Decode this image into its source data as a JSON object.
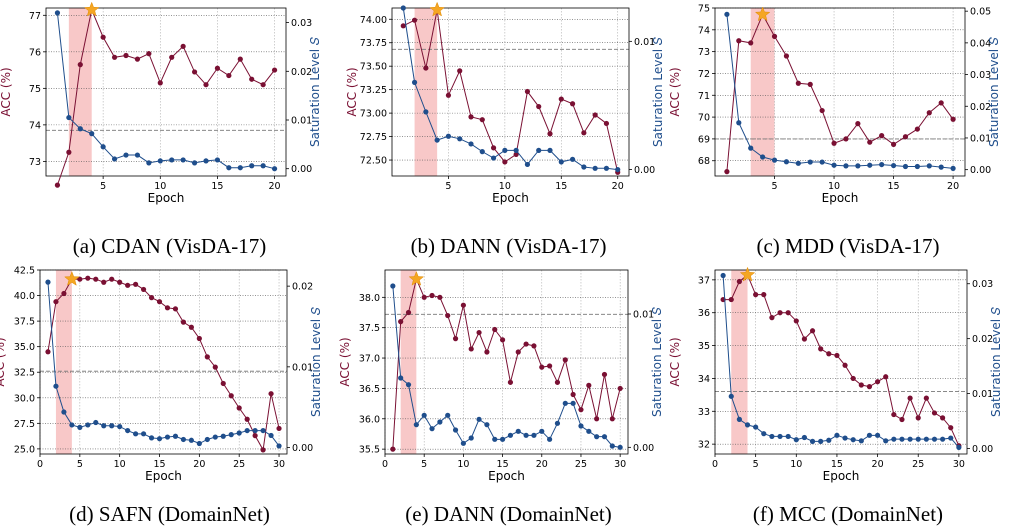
{
  "colors": {
    "acc": "#7a1033",
    "sat": "#1f4e8c",
    "band": "#f4a3a3",
    "star": "#f5a623",
    "grid": "#b0b0b0"
  },
  "chart_data": [
    {
      "type": "line",
      "caption": "(a) CDAN (VisDA-17)",
      "xlabel": "Epoch",
      "ylabel_left": "ACC (%)",
      "ylabel_right": "Saturation Level 𝑆",
      "xlim": [
        0,
        21
      ],
      "xticks": [
        5,
        10,
        15,
        20
      ],
      "xtick_labels": [
        "5",
        "10",
        "15",
        "20"
      ],
      "ylim_left": [
        72.6,
        77.2
      ],
      "yticks_left": [
        73,
        74,
        75,
        76,
        77
      ],
      "ytick_labels_left": [
        "73",
        "74",
        "75",
        "76",
        "77"
      ],
      "ylim_right": [
        -0.0015,
        0.033
      ],
      "yticks_right": [
        0.0,
        0.01,
        0.02,
        0.03
      ],
      "ytick_labels_right": [
        "0.00",
        "0.01",
        "0.02",
        "0.03"
      ],
      "band": [
        2,
        4
      ],
      "star_x": 4,
      "hline_left": 73.85,
      "series": [
        {
          "axis": "left",
          "x": [
            1,
            2,
            3,
            4,
            5,
            6,
            7,
            8,
            9,
            10,
            11,
            12,
            13,
            14,
            15,
            16,
            17,
            18,
            19,
            20
          ],
          "values": [
            72.35,
            73.25,
            75.65,
            77.15,
            76.4,
            75.85,
            75.9,
            75.8,
            75.95,
            75.15,
            75.85,
            76.15,
            75.45,
            75.1,
            75.55,
            75.35,
            75.8,
            75.25,
            75.1,
            75.5
          ]
        },
        {
          "axis": "right",
          "x": [
            1,
            2,
            3,
            4,
            5,
            6,
            7,
            8,
            9,
            10,
            11,
            12,
            13,
            14,
            15,
            16,
            17,
            18,
            19,
            20
          ],
          "values": [
            0.032,
            0.0105,
            0.0082,
            0.0072,
            0.0045,
            0.002,
            0.0028,
            0.0028,
            0.0012,
            0.0016,
            0.0018,
            0.0018,
            0.0012,
            0.0016,
            0.0018,
            0.0002,
            0.0002,
            0.0006,
            0.0006,
            0.0
          ]
        }
      ]
    },
    {
      "type": "line",
      "caption": "(b) DANN (VisDA-17)",
      "xlabel": "Epoch",
      "ylabel_left": "ACC (%)",
      "ylabel_right": "Saturation Level 𝑆",
      "xlim": [
        0,
        21
      ],
      "xticks": [
        5,
        10,
        15,
        20
      ],
      "xtick_labels": [
        "5",
        "10",
        "15",
        "20"
      ],
      "ylim_left": [
        72.33,
        74.12
      ],
      "yticks_left": [
        72.5,
        72.75,
        73.0,
        73.25,
        73.5,
        73.75,
        74.0
      ],
      "ytick_labels_left": [
        "72.50",
        "72.75",
        "73.00",
        "73.25",
        "73.50",
        "73.75",
        "74.00"
      ],
      "ylim_right": [
        -0.0005,
        0.0126
      ],
      "yticks_right": [
        0.0,
        0.01
      ],
      "ytick_labels_right": [
        "0.00",
        "0.01"
      ],
      "band": [
        2,
        4
      ],
      "star_x": 4,
      "hline_left": 73.68,
      "series": [
        {
          "axis": "left",
          "x": [
            1,
            2,
            3,
            4,
            5,
            6,
            7,
            8,
            9,
            10,
            11,
            12,
            13,
            14,
            15,
            16,
            17,
            18,
            19,
            20
          ],
          "values": [
            73.93,
            73.99,
            73.48,
            74.1,
            73.19,
            73.45,
            72.96,
            72.93,
            72.63,
            72.48,
            72.56,
            73.23,
            73.07,
            72.78,
            73.15,
            73.1,
            72.79,
            72.98,
            72.89,
            72.37
          ]
        },
        {
          "axis": "right",
          "x": [
            1,
            2,
            3,
            4,
            5,
            6,
            7,
            8,
            9,
            10,
            11,
            12,
            13,
            14,
            15,
            16,
            17,
            18,
            19,
            20
          ],
          "values": [
            0.0126,
            0.0068,
            0.0045,
            0.0023,
            0.0026,
            0.0024,
            0.002,
            0.0014,
            0.0009,
            0.0015,
            0.0015,
            0.0004,
            0.0015,
            0.0015,
            0.0006,
            0.0008,
            0.0002,
            0.0001,
            0.0001,
            0.0
          ]
        }
      ]
    },
    {
      "type": "line",
      "caption": "(c) MDD (VisDA-17)",
      "xlabel": "Epoch",
      "ylabel_left": "ACC (%)",
      "ylabel_right": "Saturation Level 𝑆",
      "xlim": [
        0,
        21
      ],
      "xticks": [
        5,
        10,
        15,
        20
      ],
      "xtick_labels": [
        "5",
        "10",
        "15",
        "20"
      ],
      "ylim_left": [
        67.3,
        75.0
      ],
      "yticks_left": [
        68,
        69,
        70,
        71,
        72,
        73,
        74,
        75
      ],
      "ytick_labels_left": [
        "68",
        "69",
        "70",
        "71",
        "72",
        "73",
        "74",
        "75"
      ],
      "ylim_right": [
        -0.002,
        0.051
      ],
      "yticks_right": [
        0.0,
        0.01,
        0.02,
        0.03,
        0.04,
        0.05
      ],
      "ytick_labels_right": [
        "0.00",
        "0.01",
        "0.02",
        "0.03",
        "0.04",
        "0.05"
      ],
      "band": [
        3,
        5
      ],
      "star_x": 4,
      "hline_left": 69.0,
      "series": [
        {
          "axis": "left",
          "x": [
            1,
            2,
            3,
            4,
            5,
            6,
            7,
            8,
            9,
            10,
            11,
            12,
            13,
            14,
            15,
            16,
            17,
            18,
            19,
            20
          ],
          "values": [
            67.5,
            73.5,
            73.4,
            74.7,
            73.7,
            72.8,
            71.55,
            71.5,
            70.3,
            68.8,
            69.0,
            69.7,
            68.85,
            69.15,
            68.75,
            69.1,
            69.45,
            70.2,
            70.65,
            69.9
          ]
        },
        {
          "axis": "right",
          "x": [
            1,
            2,
            3,
            4,
            5,
            6,
            7,
            8,
            9,
            10,
            11,
            12,
            13,
            14,
            15,
            16,
            17,
            18,
            19,
            20
          ],
          "values": [
            0.049,
            0.0148,
            0.0068,
            0.004,
            0.003,
            0.0025,
            0.002,
            0.0024,
            0.0024,
            0.0014,
            0.0012,
            0.0012,
            0.0014,
            0.0016,
            0.0013,
            0.001,
            0.001,
            0.0012,
            0.0008,
            0.0004
          ]
        }
      ]
    },
    {
      "type": "line",
      "caption": "(d) SAFN (DomainNet)",
      "xlabel": "Epoch",
      "ylabel_left": "ACC (%)",
      "ylabel_right": "Saturation Level 𝑆",
      "xlim": [
        0,
        31
      ],
      "xticks": [
        0,
        5,
        10,
        15,
        20,
        25,
        30
      ],
      "xtick_labels": [
        "0",
        "5",
        "10",
        "15",
        "20",
        "25",
        "30"
      ],
      "ylim_left": [
        24.5,
        42.5
      ],
      "yticks_left": [
        25.0,
        27.5,
        30.0,
        32.5,
        35.0,
        37.5,
        40.0,
        42.5
      ],
      "ytick_labels_left": [
        "25.0",
        "27.5",
        "30.0",
        "32.5",
        "35.0",
        "37.5",
        "40.0",
        "42.5"
      ],
      "ylim_right": [
        -0.0008,
        0.022
      ],
      "yticks_right": [
        0.0,
        0.01,
        0.02
      ],
      "ytick_labels_right": [
        "0.00",
        "0.01",
        "0.02"
      ],
      "band": [
        2,
        4
      ],
      "star_x": 4,
      "hline_left": 32.6,
      "series": [
        {
          "axis": "left",
          "x": [
            1,
            2,
            3,
            4,
            5,
            6,
            7,
            8,
            9,
            10,
            11,
            12,
            13,
            14,
            15,
            16,
            17,
            18,
            19,
            20,
            21,
            22,
            23,
            24,
            25,
            26,
            27,
            28,
            29,
            30
          ],
          "values": [
            34.5,
            39.4,
            40.2,
            41.6,
            41.6,
            41.7,
            41.6,
            41.3,
            41.6,
            41.3,
            41.0,
            41.1,
            40.6,
            39.8,
            39.4,
            38.8,
            38.7,
            37.4,
            36.9,
            35.8,
            34.0,
            33.0,
            31.4,
            30.2,
            29.0,
            27.9,
            26.3,
            24.9,
            30.4,
            27.0
          ]
        },
        {
          "axis": "right",
          "x": [
            1,
            2,
            3,
            4,
            5,
            6,
            7,
            8,
            9,
            10,
            11,
            12,
            13,
            14,
            15,
            16,
            17,
            18,
            19,
            20,
            21,
            22,
            23,
            24,
            25,
            26,
            27,
            28,
            29,
            30
          ],
          "values": [
            0.0205,
            0.0076,
            0.0044,
            0.0028,
            0.0025,
            0.0028,
            0.0031,
            0.0027,
            0.0027,
            0.0026,
            0.0021,
            0.0017,
            0.0017,
            0.0012,
            0.0011,
            0.0013,
            0.0014,
            0.001,
            0.0009,
            0.0005,
            0.001,
            0.0013,
            0.0014,
            0.0016,
            0.0018,
            0.0021,
            0.0021,
            0.0021,
            0.0015,
            0.0002
          ]
        }
      ]
    },
    {
      "type": "line",
      "caption": "(e) DANN (DomainNet)",
      "xlabel": "Epoch",
      "ylabel_left": "ACC (%)",
      "ylabel_right": "Saturation Level 𝑆",
      "xlim": [
        0,
        31
      ],
      "xticks": [
        0,
        5,
        10,
        15,
        20,
        25,
        30
      ],
      "xtick_labels": [
        "0",
        "5",
        "10",
        "15",
        "20",
        "25",
        "30"
      ],
      "ylim_left": [
        35.42,
        38.45
      ],
      "yticks_left": [
        35.5,
        36.0,
        36.5,
        37.0,
        37.5,
        38.0
      ],
      "ytick_labels_left": [
        "35.5",
        "36.0",
        "36.5",
        "37.0",
        "37.5",
        "38.0"
      ],
      "ylim_right": [
        -0.0005,
        0.0133
      ],
      "yticks_right": [
        0.0,
        0.01
      ],
      "ytick_labels_right": [
        "0.00",
        "0.01"
      ],
      "band": [
        2,
        4
      ],
      "star_x": 4,
      "hline_left": 37.72,
      "series": [
        {
          "axis": "left",
          "x": [
            1,
            2,
            3,
            4,
            5,
            6,
            7,
            8,
            9,
            10,
            11,
            12,
            13,
            14,
            15,
            16,
            17,
            18,
            19,
            20,
            21,
            22,
            23,
            24,
            25,
            26,
            27,
            28,
            29,
            30
          ],
          "values": [
            35.5,
            37.6,
            37.75,
            38.3,
            38.0,
            38.03,
            38.0,
            37.7,
            37.32,
            37.87,
            37.15,
            37.42,
            37.1,
            37.47,
            37.3,
            36.6,
            37.1,
            37.23,
            37.2,
            36.85,
            36.87,
            36.6,
            36.97,
            36.4,
            36.15,
            36.55,
            36.0,
            36.73,
            36.0,
            36.5
          ]
        },
        {
          "axis": "right",
          "x": [
            1,
            2,
            3,
            4,
            5,
            6,
            7,
            8,
            9,
            10,
            11,
            12,
            13,
            14,
            15,
            16,
            17,
            18,
            19,
            20,
            21,
            22,
            23,
            24,
            25,
            26,
            27,
            28,
            29,
            30
          ],
          "values": [
            0.0121,
            0.0052,
            0.0047,
            0.0017,
            0.0024,
            0.0014,
            0.0019,
            0.0024,
            0.0013,
            0.0003,
            0.0007,
            0.0021,
            0.0017,
            0.0006,
            0.0006,
            0.0009,
            0.0012,
            0.0009,
            0.0009,
            0.0012,
            0.0006,
            0.0018,
            0.0033,
            0.0033,
            0.0016,
            0.0012,
            0.0008,
            0.0008,
            0.0001,
            0.0
          ]
        }
      ]
    },
    {
      "type": "line",
      "caption": "(f) MCC (DomainNet)",
      "xlabel": "Epoch",
      "ylabel_left": "ACC (%)",
      "ylabel_right": "Saturation Level 𝑆",
      "xlim": [
        0,
        31
      ],
      "xticks": [
        0,
        5,
        10,
        15,
        20,
        25,
        30
      ],
      "xtick_labels": [
        "0",
        "5",
        "10",
        "15",
        "20",
        "25",
        "30"
      ],
      "ylim_left": [
        31.7,
        37.3
      ],
      "yticks_left": [
        32,
        33,
        34,
        35,
        36,
        37
      ],
      "ytick_labels_left": [
        "32",
        "33",
        "34",
        "35",
        "36",
        "37"
      ],
      "ylim_right": [
        -0.001,
        0.0325
      ],
      "yticks_right": [
        0.0,
        0.01,
        0.02,
        0.03
      ],
      "ytick_labels_right": [
        "0.00",
        "0.01",
        "0.02",
        "0.03"
      ],
      "band": [
        2,
        4
      ],
      "star_x": 4,
      "hline_left": 33.6,
      "series": [
        {
          "axis": "left",
          "x": [
            1,
            2,
            3,
            4,
            5,
            6,
            7,
            8,
            9,
            10,
            11,
            12,
            13,
            14,
            15,
            16,
            17,
            18,
            19,
            20,
            21,
            22,
            23,
            24,
            25,
            26,
            27,
            28,
            29,
            30
          ],
          "values": [
            36.4,
            36.4,
            36.95,
            37.15,
            36.55,
            36.55,
            35.85,
            36.0,
            36.0,
            35.75,
            35.2,
            35.45,
            34.9,
            34.75,
            34.7,
            34.4,
            34.0,
            33.8,
            33.75,
            33.9,
            34.05,
            32.9,
            32.75,
            33.4,
            32.8,
            33.4,
            32.95,
            32.8,
            32.5,
            31.95
          ]
        },
        {
          "axis": "right",
          "x": [
            1,
            2,
            3,
            4,
            5,
            6,
            7,
            8,
            9,
            10,
            11,
            12,
            13,
            14,
            15,
            16,
            17,
            18,
            19,
            20,
            21,
            22,
            23,
            24,
            25,
            26,
            27,
            28,
            29,
            30
          ],
          "values": [
            0.0315,
            0.0095,
            0.0053,
            0.0043,
            0.0039,
            0.0027,
            0.0022,
            0.0022,
            0.0022,
            0.0016,
            0.002,
            0.0013,
            0.0013,
            0.0015,
            0.0024,
            0.0019,
            0.0016,
            0.0014,
            0.0024,
            0.0024,
            0.0014,
            0.0017,
            0.0017,
            0.0017,
            0.0017,
            0.0017,
            0.0017,
            0.0017,
            0.0019,
            0.0002
          ]
        }
      ]
    }
  ]
}
